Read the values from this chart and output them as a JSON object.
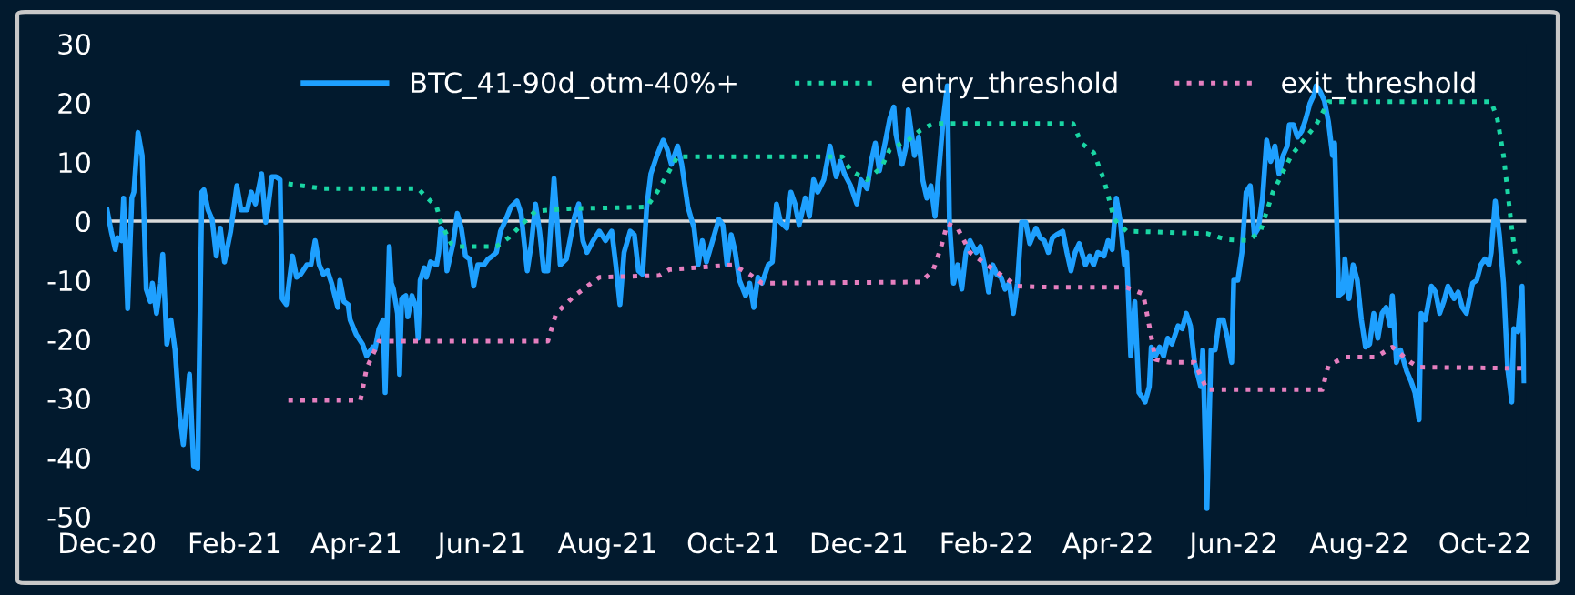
{
  "chart_data": {
    "type": "line",
    "xlim": [
      "2020-12-01",
      "2022-10-21"
    ],
    "ylim": [
      -50,
      30
    ],
    "yticks": [
      -50,
      -40,
      -30,
      -20,
      -10,
      0,
      10,
      20,
      30
    ],
    "xticks": [
      {
        "value": "2020-12-01",
        "label": "Dec-20"
      },
      {
        "value": "2021-02-01",
        "label": "Feb-21"
      },
      {
        "value": "2021-04-01",
        "label": "Apr-21"
      },
      {
        "value": "2021-06-01",
        "label": "Jun-21"
      },
      {
        "value": "2021-08-01",
        "label": "Aug-21"
      },
      {
        "value": "2021-10-01",
        "label": "Oct-21"
      },
      {
        "value": "2021-12-01",
        "label": "Dec-21"
      },
      {
        "value": "2022-02-01",
        "label": "Feb-22"
      },
      {
        "value": "2022-04-01",
        "label": "Apr-22"
      },
      {
        "value": "2022-06-01",
        "label": "Jun-22"
      },
      {
        "value": "2022-08-01",
        "label": "Aug-22"
      },
      {
        "value": "2022-10-01",
        "label": "Oct-22"
      }
    ],
    "grid": false,
    "legend": "top right",
    "marker": "none",
    "ref_lines": [
      {
        "axis": "y",
        "value": 0,
        "label": null,
        "color": "#d9d9d9",
        "line_style": "solid"
      }
    ],
    "series": [
      {
        "name": "BTC_41-90d_otm-40%+",
        "color": "#1ea0ff",
        "line_style": "solid",
        "x": [
          "2020-12-01",
          "2020-12-03",
          "2020-12-05",
          "2020-12-06",
          "2020-12-08",
          "2020-12-09",
          "2020-12-11",
          "2020-12-13",
          "2020-12-14",
          "2020-12-16",
          "2020-12-18",
          "2020-12-20",
          "2020-12-22",
          "2020-12-23",
          "2020-12-25",
          "2020-12-27",
          "2020-12-28",
          "2020-12-30",
          "2021-01-01",
          "2021-01-03",
          "2021-01-05",
          "2021-01-07",
          "2021-01-09",
          "2021-01-10",
          "2021-01-12",
          "2021-01-14",
          "2021-01-16",
          "2021-01-17",
          "2021-01-19",
          "2021-01-21",
          "2021-01-23",
          "2021-01-25",
          "2021-01-27",
          "2021-01-30",
          "2021-02-02",
          "2021-02-04",
          "2021-02-07",
          "2021-02-09",
          "2021-02-11",
          "2021-02-14",
          "2021-02-16",
          "2021-02-17",
          "2021-02-19",
          "2021-02-21",
          "2021-02-23",
          "2021-02-24",
          "2021-02-26",
          "2021-03-01",
          "2021-03-03",
          "2021-03-05",
          "2021-03-08",
          "2021-03-10",
          "2021-03-12",
          "2021-03-14",
          "2021-03-16",
          "2021-03-18",
          "2021-03-20",
          "2021-03-23",
          "2021-03-24",
          "2021-03-26",
          "2021-03-28",
          "2021-03-29",
          "2021-04-01",
          "2021-04-04",
          "2021-04-06",
          "2021-04-09",
          "2021-04-10",
          "2021-04-12",
          "2021-04-14",
          "2021-04-15",
          "2021-04-17",
          "2021-04-18",
          "2021-04-19",
          "2021-04-21",
          "2021-04-22",
          "2021-04-23",
          "2021-04-25",
          "2021-04-26",
          "2021-04-28",
          "2021-04-30",
          "2021-05-01",
          "2021-05-02",
          "2021-05-04",
          "2021-05-05",
          "2021-05-07",
          "2021-05-10",
          "2021-05-11",
          "2021-05-12",
          "2021-05-14",
          "2021-05-15",
          "2021-05-18",
          "2021-05-20",
          "2021-05-22",
          "2021-05-24",
          "2021-05-26",
          "2021-05-28",
          "2021-05-30",
          "2021-06-02",
          "2021-06-04",
          "2021-06-06",
          "2021-06-08",
          "2021-06-10",
          "2021-06-12",
          "2021-06-15",
          "2021-06-18",
          "2021-06-20",
          "2021-06-23",
          "2021-06-25",
          "2021-06-27",
          "2021-06-29",
          "2021-07-01",
          "2021-07-03",
          "2021-07-06",
          "2021-07-09",
          "2021-07-12",
          "2021-07-16",
          "2021-07-18",
          "2021-07-20",
          "2021-07-22",
          "2021-07-25",
          "2021-07-28",
          "2021-07-31",
          "2021-08-03",
          "2021-08-05",
          "2021-08-07",
          "2021-08-09",
          "2021-08-12",
          "2021-08-14",
          "2021-08-16",
          "2021-08-18",
          "2021-08-20",
          "2021-08-22",
          "2021-08-25",
          "2021-08-28",
          "2021-08-30",
          "2021-09-01",
          "2021-09-04",
          "2021-09-06",
          "2021-09-09",
          "2021-09-12",
          "2021-09-14",
          "2021-09-16",
          "2021-09-18",
          "2021-09-21",
          "2021-09-24",
          "2021-09-26",
          "2021-09-28",
          "2021-09-30",
          "2021-10-02",
          "2021-10-04",
          "2021-10-07",
          "2021-10-09",
          "2021-10-11",
          "2021-10-13",
          "2021-10-15",
          "2021-10-18",
          "2021-10-20",
          "2021-10-22",
          "2021-10-24",
          "2021-10-27",
          "2021-10-29",
          "2021-10-31",
          "2021-11-02",
          "2021-11-05",
          "2021-11-07",
          "2021-11-09",
          "2021-11-11",
          "2021-11-14",
          "2021-11-17",
          "2021-11-20",
          "2021-11-22",
          "2021-11-24",
          "2021-11-27",
          "2021-11-30",
          "2021-12-02",
          "2021-12-05",
          "2021-12-07",
          "2021-12-09",
          "2021-12-11",
          "2021-12-14",
          "2021-12-16",
          "2021-12-18",
          "2021-12-19",
          "2021-12-22",
          "2021-12-24",
          "2021-12-25",
          "2021-12-28",
          "2021-12-30",
          "2022-01-01",
          "2022-01-03",
          "2022-01-05",
          "2022-01-07",
          "2022-01-09",
          "2022-01-11",
          "2022-01-13",
          "2022-01-14",
          "2022-01-16",
          "2022-01-18",
          "2022-01-20",
          "2022-01-22",
          "2022-01-24",
          "2022-01-27",
          "2022-01-29",
          "2022-01-31",
          "2022-02-02",
          "2022-02-04",
          "2022-02-06",
          "2022-02-08",
          "2022-02-10",
          "2022-02-12",
          "2022-02-14",
          "2022-02-16",
          "2022-02-18",
          "2022-02-20",
          "2022-02-22",
          "2022-02-25",
          "2022-02-27",
          "2022-03-01",
          "2022-03-03",
          "2022-03-05",
          "2022-03-07",
          "2022-03-10",
          "2022-03-12",
          "2022-03-14",
          "2022-03-16",
          "2022-03-18",
          "2022-03-21",
          "2022-03-23",
          "2022-03-25",
          "2022-03-27",
          "2022-03-30",
          "2022-04-01",
          "2022-04-03",
          "2022-04-05",
          "2022-04-07",
          "2022-04-09",
          "2022-04-10",
          "2022-04-12",
          "2022-04-14",
          "2022-04-16",
          "2022-04-18",
          "2022-04-19",
          "2022-04-21",
          "2022-04-22",
          "2022-04-24",
          "2022-04-26",
          "2022-04-28",
          "2022-04-30",
          "2022-05-02",
          "2022-05-05",
          "2022-05-07",
          "2022-05-09",
          "2022-05-11",
          "2022-05-13",
          "2022-05-16",
          "2022-05-17",
          "2022-05-19",
          "2022-05-21",
          "2022-05-23",
          "2022-05-25",
          "2022-05-27",
          "2022-05-29",
          "2022-05-31",
          "2022-06-01",
          "2022-06-03",
          "2022-06-05",
          "2022-06-07",
          "2022-06-09",
          "2022-06-11",
          "2022-06-13",
          "2022-06-15",
          "2022-06-17",
          "2022-06-19",
          "2022-06-21",
          "2022-06-23",
          "2022-06-25",
          "2022-06-27",
          "2022-06-28",
          "2022-06-30",
          "2022-07-02",
          "2022-07-04",
          "2022-07-06",
          "2022-07-08",
          "2022-07-10",
          "2022-07-11",
          "2022-07-13",
          "2022-07-15",
          "2022-07-17",
          "2022-07-19",
          "2022-07-20",
          "2022-07-22",
          "2022-07-24",
          "2022-07-25",
          "2022-07-27",
          "2022-07-29",
          "2022-07-31",
          "2022-08-02",
          "2022-08-04",
          "2022-08-06",
          "2022-08-08",
          "2022-08-10",
          "2022-08-12",
          "2022-08-14",
          "2022-08-16",
          "2022-08-17",
          "2022-08-19",
          "2022-08-21",
          "2022-08-24",
          "2022-08-26",
          "2022-08-28",
          "2022-08-30",
          "2022-08-31",
          "2022-09-02",
          "2022-09-05",
          "2022-09-07",
          "2022-09-09",
          "2022-09-11",
          "2022-09-13",
          "2022-09-16",
          "2022-09-18",
          "2022-09-20",
          "2022-09-22",
          "2022-09-25",
          "2022-09-27",
          "2022-09-29",
          "2022-10-01",
          "2022-10-03",
          "2022-10-04",
          "2022-10-06",
          "2022-10-08",
          "2022-10-10",
          "2022-10-12",
          "2022-10-14",
          "2022-10-15",
          "2022-10-17",
          "2022-10-19",
          "2022-10-20"
        ],
        "values": [
          1.9,
          -1.7,
          -4.8,
          -2.8,
          -3.3,
          3.9,
          -14.8,
          3.9,
          4.9,
          15,
          11.1,
          -11.5,
          -13.6,
          -10.5,
          -15.6,
          -10.5,
          -5.6,
          -20.8,
          -16.7,
          -21.8,
          -32.1,
          -37.8,
          -30,
          -25.9,
          -41.4,
          -41.9,
          4.9,
          5.3,
          1.9,
          0.3,
          -5.9,
          -1.2,
          -6.9,
          -1.7,
          6,
          1.9,
          1.9,
          4.9,
          2.9,
          8,
          -0.2,
          1.9,
          7.5,
          7.5,
          7,
          -13.1,
          -14.1,
          -5.9,
          -9.5,
          -9,
          -7.4,
          -7.4,
          -3.3,
          -7.4,
          -9,
          -8.4,
          -10.5,
          -14.6,
          -10,
          -13.6,
          -14.1,
          -16.7,
          -19.2,
          -20.8,
          -22.8,
          -21.3,
          -21.8,
          -18.2,
          -16.7,
          -29,
          -4.3,
          -10.5,
          -11.5,
          -15.6,
          -25.9,
          -13.1,
          -12.6,
          -16.2,
          -12.6,
          -14.6,
          -19.8,
          -10,
          -7.9,
          -9.5,
          -6.9,
          -7.4,
          -5.3,
          -1.2,
          -2.3,
          -8.4,
          -3.8,
          1.3,
          -1.2,
          -5.9,
          -6.4,
          -11,
          -7.4,
          -7.4,
          -6.4,
          -5.9,
          -5.3,
          -1.7,
          -0.2,
          2.4,
          3.4,
          1.3,
          -8.4,
          -3.8,
          2.9,
          -1.7,
          -8.4,
          -8.4,
          7.2,
          -7.4,
          -6.4,
          0.8,
          2.9,
          -3.3,
          -5.3,
          -3.3,
          -1.7,
          -3.3,
          -1.7,
          -7.4,
          -14.1,
          -5.3,
          -1.7,
          -2.3,
          -8.4,
          -9,
          2.4,
          8,
          11.1,
          13.7,
          12.1,
          9.6,
          12.7,
          9.6,
          2.4,
          -1.2,
          -7.4,
          -3.3,
          -6.9,
          -3.3,
          0.3,
          -0.7,
          -7.4,
          -2.3,
          -5.3,
          -10,
          -12.6,
          -10.5,
          -14.6,
          -9.5,
          -10.5,
          -7.4,
          -6.9,
          2.9,
          -0.2,
          -1.2,
          4.9,
          2.9,
          -0.7,
          3.9,
          0.8,
          7,
          4.9,
          7,
          12.7,
          7.5,
          10.1,
          8,
          6,
          2.9,
          7,
          5.5,
          10.1,
          13.2,
          8.5,
          13.7,
          17.3,
          19.3,
          14.7,
          9.6,
          12.7,
          18.8,
          11.1,
          14.2,
          7,
          3.9,
          6,
          0.8,
          9.1,
          17.3,
          22.9,
          -0.2,
          -10.5,
          -7.4,
          -11.5,
          -5.3,
          -3.3,
          -5.3,
          -4.3,
          -7.4,
          -12,
          -7.4,
          -9,
          -9.5,
          -11.5,
          -10.5,
          -15.6,
          -10.5,
          -0.2,
          -0.2,
          -3.8,
          -1.2,
          -2.8,
          -3.3,
          -5.3,
          -2.8,
          -2.3,
          -1.7,
          -5.3,
          -8.4,
          -5.3,
          -3.8,
          -7.4,
          -5.9,
          -7.4,
          -5.3,
          -5.9,
          -3.3,
          -4.8,
          3.9,
          -0.2,
          -7.4,
          -5.3,
          -22.8,
          -13.6,
          -29,
          -30,
          -30.6,
          -28,
          -21.3,
          -22.8,
          -21.3,
          -22.8,
          -19.8,
          -20.8,
          -17.7,
          -18.2,
          -15.6,
          -17.7,
          -23.9,
          -28,
          -21.8,
          -48.6,
          -21.8,
          -21.8,
          -16.7,
          -16.7,
          -19.8,
          -23.9,
          -10,
          -10,
          -5.3,
          4.9,
          6,
          -2.3,
          -1.2,
          3.9,
          13.7,
          10.1,
          12.7,
          8,
          11.1,
          12.7,
          16.3,
          16.3,
          14.2,
          15.2,
          17.3,
          19.9,
          21.4,
          22.9,
          21.9,
          20.4,
          16.8,
          11.1,
          13.2,
          -12.6,
          -12,
          -6.4,
          -13.1,
          -7.4,
          -10,
          -16.7,
          -21.3,
          -20.8,
          -15.6,
          -19.8,
          -15.6,
          -14.6,
          -17.7,
          -12.6,
          -23.9,
          -21.8,
          -25.4,
          -27,
          -29,
          -33.6,
          -15.6,
          -16.7,
          -11,
          -12,
          -15.6,
          -13.6,
          -11,
          -13.1,
          -12,
          -14.6,
          -15.6,
          -10.5,
          -10,
          -7.4,
          -6.4,
          -7.4,
          -5.3,
          3.4,
          -2.3,
          -10.5,
          -24.9,
          -30.6,
          -18.2,
          -18.7,
          -11,
          -27
        ]
      },
      {
        "name": "entry_threshold",
        "color": "#1ad6a4",
        "line_style": "dotted",
        "x": [
          "2021-02-27",
          "2021-03-16",
          "2021-05-01",
          "2021-05-04",
          "2021-05-10",
          "2021-05-12",
          "2021-05-17",
          "2021-05-21",
          "2021-06-08",
          "2021-06-14",
          "2021-06-20",
          "2021-06-27",
          "2021-07-13",
          "2021-08-20",
          "2021-08-25",
          "2021-08-31",
          "2021-09-04",
          "2021-11-23",
          "2021-11-27",
          "2021-12-05",
          "2021-12-12",
          "2021-12-16",
          "2021-12-25",
          "2021-12-31",
          "2022-01-06",
          "2022-03-15",
          "2022-03-19",
          "2022-03-25",
          "2022-03-30",
          "2022-04-04",
          "2022-04-10",
          "2022-05-19",
          "2022-05-28",
          "2022-06-08",
          "2022-06-14",
          "2022-06-20",
          "2022-06-29",
          "2022-07-11",
          "2022-07-17",
          "2022-10-04",
          "2022-10-07",
          "2022-10-10",
          "2022-10-14",
          "2022-10-16",
          "2022-10-20"
        ],
        "values": [
          6.3,
          5.5,
          5.5,
          4.4,
          2.4,
          -0.2,
          -3.8,
          -4.3,
          -4.3,
          -2.8,
          -0.7,
          1.7,
          2.1,
          2.4,
          4.9,
          8.5,
          10.9,
          10.9,
          8.5,
          7,
          9.1,
          12.1,
          13.7,
          15.4,
          16.5,
          16.5,
          13.2,
          11.6,
          7,
          0.3,
          -1.7,
          -2.1,
          -3.1,
          -3.3,
          -1.7,
          4.9,
          11.1,
          16.3,
          20.2,
          20.2,
          17.3,
          11.1,
          -1.2,
          -6.4,
          -7.9
        ]
      },
      {
        "name": "exit_threshold",
        "color": "#e57fbf",
        "line_style": "dotted",
        "x": [
          "2021-02-27",
          "2021-04-03",
          "2021-04-06",
          "2021-04-12",
          "2021-07-03",
          "2021-07-07",
          "2021-07-16",
          "2021-07-28",
          "2021-08-26",
          "2021-08-31",
          "2021-10-01",
          "2021-10-09",
          "2021-10-15",
          "2021-12-31",
          "2022-01-06",
          "2022-01-10",
          "2022-01-13",
          "2022-01-18",
          "2022-01-24",
          "2022-02-05",
          "2022-02-16",
          "2022-03-05",
          "2022-04-10",
          "2022-04-18",
          "2022-04-21",
          "2022-04-24",
          "2022-05-01",
          "2022-05-13",
          "2022-05-19",
          "2022-07-14",
          "2022-07-17",
          "2022-07-25",
          "2022-08-09",
          "2022-08-17",
          "2022-08-26",
          "2022-08-30",
          "2022-10-19"
        ],
        "values": [
          -30.3,
          -30.3,
          -24.9,
          -20.3,
          -20.3,
          -15.6,
          -12.6,
          -9.5,
          -9.2,
          -8.2,
          -7.4,
          -9,
          -10.5,
          -10.3,
          -8.4,
          -4.3,
          -0.4,
          -1.2,
          -5.3,
          -8.4,
          -11,
          -11.2,
          -11.2,
          -12.3,
          -17.7,
          -23.4,
          -23.9,
          -23.9,
          -28.5,
          -28.5,
          -24.4,
          -23,
          -23,
          -21.3,
          -23.9,
          -24.7,
          -24.9
        ]
      }
    ]
  }
}
